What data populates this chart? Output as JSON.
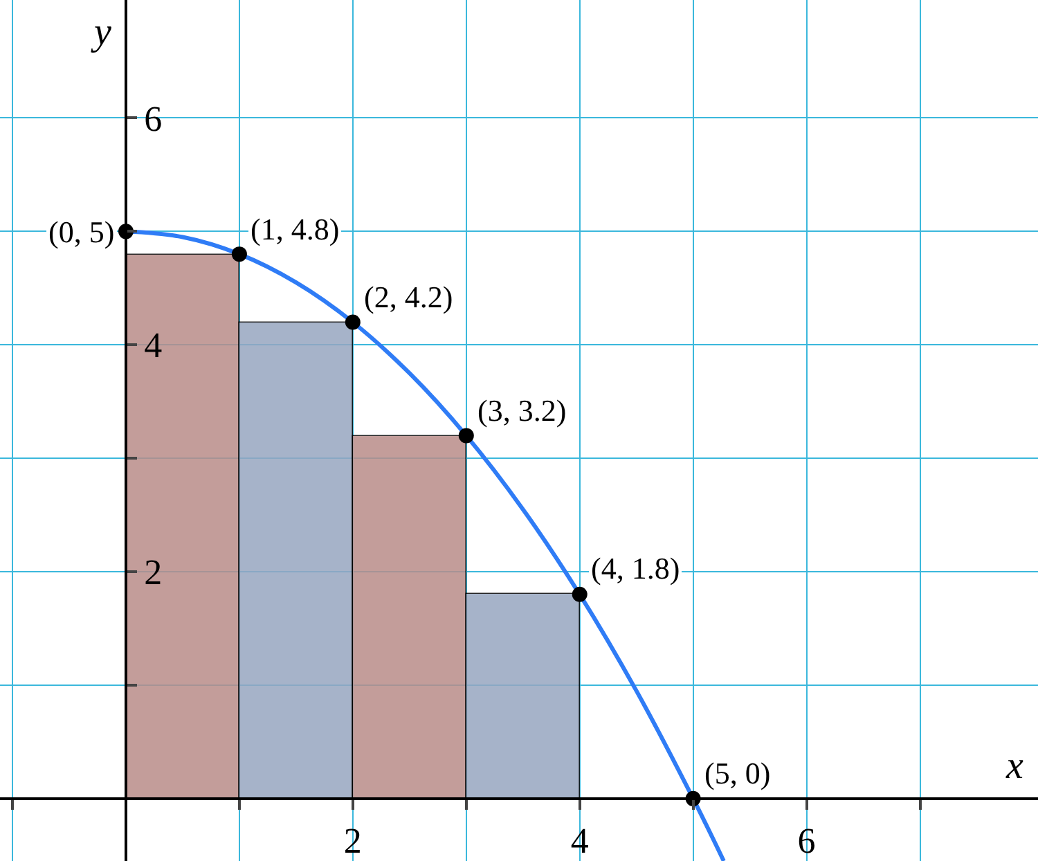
{
  "chart_data": {
    "type": "bar",
    "xlabel": "x",
    "ylabel": "y",
    "xlim": [
      -1.11,
      8.04
    ],
    "ylim": [
      -0.55,
      7.04
    ],
    "xticks": [
      {
        "value": -1,
        "label": null
      },
      {
        "value": 1,
        "label": null
      },
      2,
      {
        "value": 3,
        "label": null
      },
      4,
      {
        "value": 5,
        "label": null
      },
      6,
      {
        "value": 7,
        "label": null
      }
    ],
    "yticks": [
      {
        "value": 1,
        "label": null
      },
      2,
      {
        "value": 3,
        "label": null
      },
      4,
      {
        "value": 5,
        "label": null
      },
      6
    ],
    "grid": true,
    "series": [
      {
        "x": [
          0.5,
          1.5,
          2.5,
          3.5
        ],
        "values": [
          4.8,
          4.2,
          3.2,
          1.8
        ],
        "colors": [
          "#b98d89",
          "#97a6c0",
          "#b98d89",
          "#97a6c0"
        ]
      },
      {
        "type": "line",
        "color": "#2f7cf6",
        "marker": "none",
        "x": [
          0,
          0.5,
          1,
          1.5,
          2,
          2.5,
          3,
          3.5,
          4,
          4.5,
          5,
          5.27
        ],
        "values": [
          5,
          4.95,
          4.8,
          4.55,
          4.2,
          3.75,
          3.2,
          2.55,
          1.8,
          0.95,
          0,
          -0.55
        ]
      },
      {
        "type": "scatter",
        "color": "#000000",
        "marker": "circle",
        "x": [
          0,
          1,
          2,
          3,
          4,
          5
        ],
        "values": [
          5,
          4.8,
          4.2,
          3.2,
          1.8,
          0
        ]
      }
    ],
    "annotations": [
      {
        "text": "(0, 5)",
        "x": 0,
        "y": 5
      },
      {
        "text": "(1, 4.8)",
        "x": 1,
        "y": 4.8
      },
      {
        "text": "(2, 4.2)",
        "x": 2,
        "y": 4.2
      },
      {
        "text": "(3, 3.2)",
        "x": 3,
        "y": 3.2
      },
      {
        "text": "(4, 1.8)",
        "x": 4,
        "y": 1.8
      },
      {
        "text": "(5, 0)",
        "x": 5,
        "y": 0
      }
    ]
  }
}
